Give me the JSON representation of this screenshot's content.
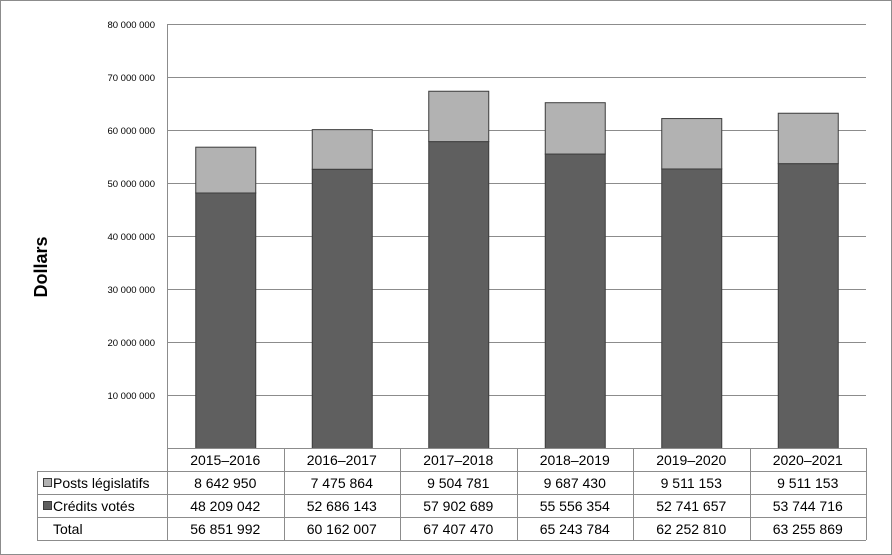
{
  "chart_data": {
    "type": "bar",
    "stacked": true,
    "title": "",
    "ylabel": "Dollars",
    "xlabel": "",
    "ylim": [
      0,
      80000000
    ],
    "ytick_step": 10000000,
    "ytick_labels": [
      "10 000 000",
      "20 000 000",
      "30 000 000",
      "40 000 000",
      "50 000 000",
      "60 000 000",
      "70 000 000",
      "80 000 000"
    ],
    "grid": true,
    "categories": [
      "2015–2016",
      "2016–2017",
      "2017–2018",
      "2018–2019",
      "2019–2020",
      "2020–2021"
    ],
    "series": [
      {
        "name": "Crédits votés",
        "color": "#5f5f5f",
        "values": [
          48209042,
          52686143,
          57902689,
          55556354,
          52741657,
          53744716
        ],
        "labels": [
          "48 209 042",
          "52 686 143",
          "57 902 689",
          "55 556 354",
          "52 741 657",
          "53 744 716"
        ]
      },
      {
        "name": "Posts législatifs",
        "color": "#b2b2b2",
        "values": [
          8642950,
          7475864,
          9504781,
          9687430,
          9511153,
          9511153
        ],
        "labels": [
          "8 642 950",
          "7 475 864",
          "9 504 781",
          "9 687 430",
          "9 511 153",
          "9 511 153"
        ]
      }
    ],
    "table_rows": [
      {
        "name": "Posts législatifs",
        "series_index": 1
      },
      {
        "name": "Crédits votés",
        "series_index": 0
      },
      {
        "name": "Total",
        "series_index": null,
        "labels": [
          "56 851 992",
          "60 162 007",
          "67 407 470",
          "65 243 784",
          "62 252 810",
          "63 255 869"
        ]
      }
    ],
    "totals": [
      56851992,
      60162007,
      67407470,
      65243784,
      62252810,
      63255869
    ],
    "legend": "data-table"
  }
}
